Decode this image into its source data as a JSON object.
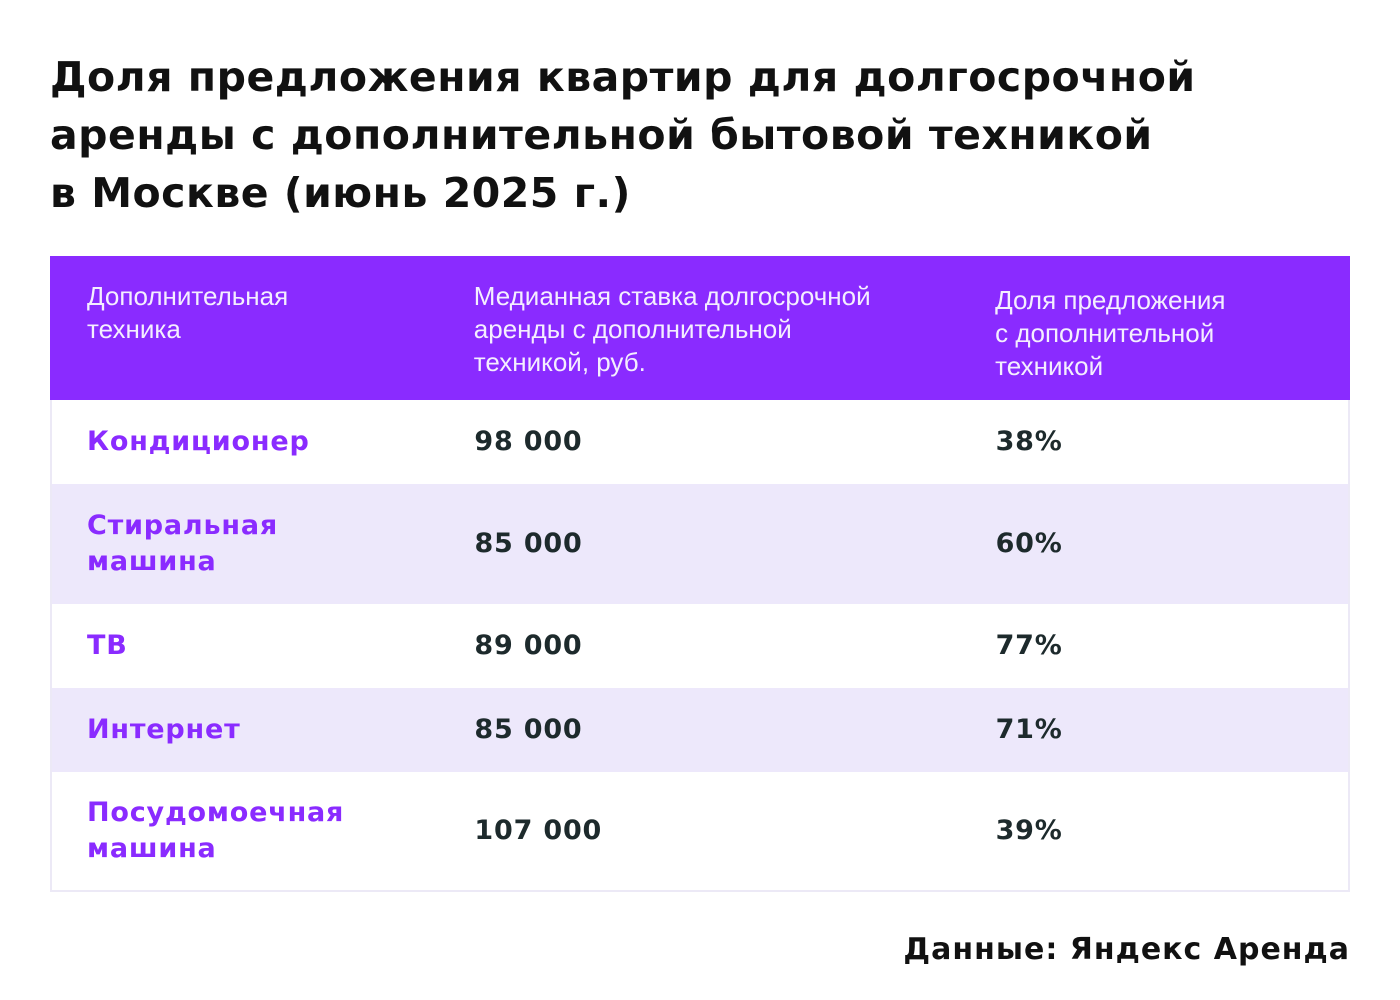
{
  "title": {
    "line1": "Доля предложения квартир для долгосрочной",
    "line2": "аренды с дополнительной бытовой техникой",
    "line3": "в Москве (июнь 2025 г.)"
  },
  "colors": {
    "header_bg": "#8a2bff",
    "header_text": "#f4eeff",
    "accent": "#8a2bff",
    "stripe": "#ede8fb",
    "value_text": "#1d2a2c"
  },
  "chart_data": {
    "type": "table",
    "title": "Доля предложения квартир для долгосрочной аренды с дополнительной бытовой техникой в Москве (июнь 2025 г.)",
    "columns": [
      "Дополнительная\nтехника",
      "Медианная ставка долгосрочной\nаренды с дополнительной\nтехникой, руб.",
      "Доля предложения\nс дополнительной\nтехникой"
    ],
    "rows": [
      {
        "item": "Кондиционер",
        "rate": "98 000",
        "share": "38%"
      },
      {
        "item": "Стиральная машина",
        "rate": "85 000",
        "share": "60%"
      },
      {
        "item": "ТВ",
        "rate": "89 000",
        "share": "77%"
      },
      {
        "item": "Интернет",
        "rate": "85 000",
        "share": "71%"
      },
      {
        "item": "Посудомоечная машина",
        "rate": "107 000",
        "share": "39%"
      }
    ]
  },
  "footer": {
    "source": "Данные: Яндекс Аренда"
  }
}
